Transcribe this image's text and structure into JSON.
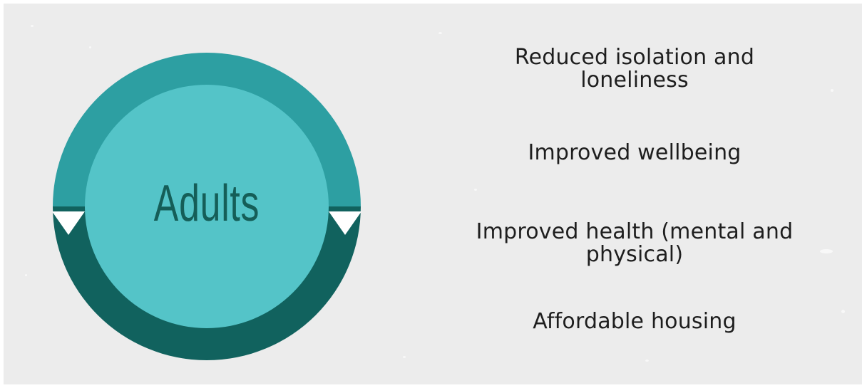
{
  "diagram": {
    "center_label": "Adults",
    "colors": {
      "background": "#ececec",
      "ring_top": "#2d9fa2",
      "ring_bottom": "#11625e",
      "inner_circle": "#54c4c8",
      "label": "#155e58",
      "arrow": "#ffffff"
    }
  },
  "outcomes": [
    {
      "label": "Reduced isolation and loneliness"
    },
    {
      "label": "Improved wellbeing"
    },
    {
      "label": "Improved health (mental and physical)"
    },
    {
      "label": "Affordable housing"
    }
  ]
}
